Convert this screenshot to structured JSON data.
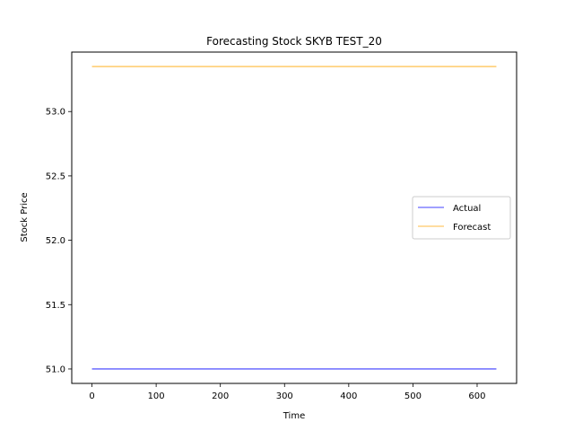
{
  "chart_data": {
    "type": "line",
    "title": "Forecasting Stock SKYB TEST_20",
    "xlabel": "Time",
    "ylabel": "Stock Price",
    "xlim": [
      -31.5,
      661.5
    ],
    "ylim": [
      50.888,
      53.462
    ],
    "x_ticks": [
      0,
      100,
      200,
      300,
      400,
      500,
      600
    ],
    "x_tick_labels": [
      "0",
      "100",
      "200",
      "300",
      "400",
      "500",
      "600"
    ],
    "y_ticks": [
      51.0,
      51.5,
      52.0,
      52.5,
      53.0
    ],
    "y_tick_labels": [
      "51.0",
      "51.5",
      "52.0",
      "52.5",
      "53.0"
    ],
    "grid": false,
    "legend_position": "center-right",
    "series": [
      {
        "name": "Actual",
        "color": "#0000ff",
        "x": [
          0,
          630
        ],
        "y": [
          51.0,
          51.0
        ]
      },
      {
        "name": "Forecast",
        "color": "#ffa500",
        "x": [
          0,
          630
        ],
        "y": [
          53.35,
          53.35
        ]
      }
    ]
  }
}
